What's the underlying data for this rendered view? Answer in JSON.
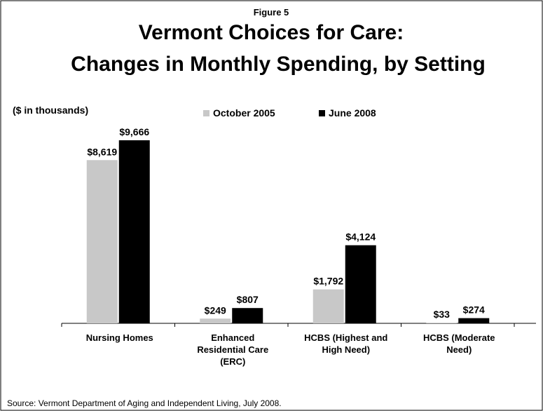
{
  "chart_data": {
    "type": "bar",
    "figure_label": "Figure 5",
    "title": "Vermont Choices for Care:",
    "subtitle": "Changes in Monthly Spending, by Setting",
    "y_label": "($ in thousands)",
    "categories": [
      "Nursing Homes",
      "Enhanced\nResidential Care\n(ERC)",
      "HCBS (Highest and\nHigh Need)",
      "HCBS (Moderate\nNeed)"
    ],
    "series": [
      {
        "name": "October 2005",
        "color": "#c8c8c8",
        "values": [
          8619,
          249,
          1792,
          33
        ],
        "value_labels": [
          "$8,619",
          "$249",
          "$1,792",
          "$33"
        ]
      },
      {
        "name": "June 2008",
        "color": "#000000",
        "values": [
          9666,
          807,
          4124,
          274
        ],
        "value_labels": [
          "$9,666",
          "$807",
          "$4,124",
          "$274"
        ]
      }
    ],
    "source": "Source: Vermont Department of Aging and Independent Living, July 2008."
  }
}
